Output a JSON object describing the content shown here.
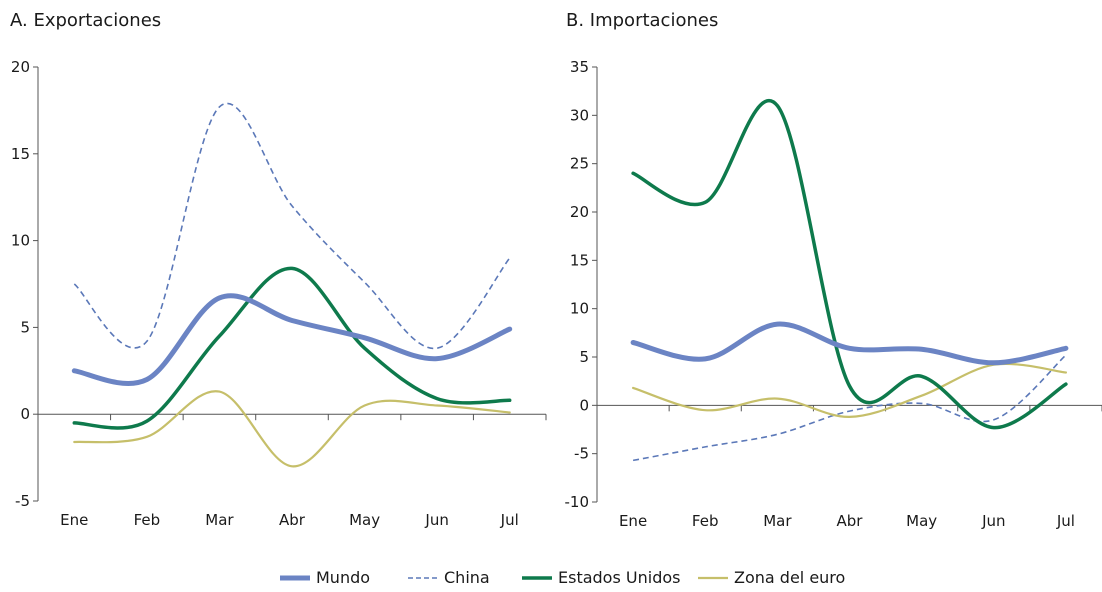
{
  "chart_data": [
    {
      "type": "line",
      "title": "A. Exportaciones",
      "xlabel": "",
      "ylabel": "",
      "categories": [
        "Ene",
        "Feb",
        "Mar",
        "Abr",
        "May",
        "Jun",
        "Jul"
      ],
      "ylim": [
        -5,
        20
      ],
      "yticks": [
        -5,
        0,
        5,
        10,
        15,
        20
      ],
      "series": [
        {
          "name": "Mundo",
          "values": [
            2.5,
            2.0,
            6.7,
            5.4,
            4.4,
            3.2,
            4.9
          ]
        },
        {
          "name": "China",
          "values": [
            7.5,
            4.2,
            17.7,
            12.0,
            7.6,
            3.8,
            9.0
          ]
        },
        {
          "name": "Estados Unidos",
          "values": [
            -0.5,
            -0.4,
            4.5,
            8.4,
            3.8,
            0.9,
            0.8
          ]
        },
        {
          "name": "Zona del euro",
          "values": [
            -1.6,
            -1.3,
            1.3,
            -3.0,
            0.5,
            0.5,
            0.1
          ]
        }
      ]
    },
    {
      "type": "line",
      "title": "B. Importaciones",
      "xlabel": "",
      "ylabel": "",
      "categories": [
        "Ene",
        "Feb",
        "Mar",
        "Abr",
        "May",
        "Jun",
        "Jul"
      ],
      "ylim": [
        -10,
        35
      ],
      "yticks": [
        -10,
        -5,
        0,
        5,
        10,
        15,
        20,
        25,
        30,
        35
      ],
      "series": [
        {
          "name": "Mundo",
          "values": [
            6.5,
            4.8,
            8.4,
            5.9,
            5.8,
            4.4,
            5.9
          ]
        },
        {
          "name": "China",
          "values": [
            -5.7,
            -4.3,
            -3.0,
            -0.6,
            0.2,
            -1.5,
            5.2
          ]
        },
        {
          "name": "Estados Unidos",
          "values": [
            24.0,
            21.0,
            31.0,
            2.0,
            3.0,
            -2.3,
            2.2
          ]
        },
        {
          "name": "Zona del euro",
          "values": [
            1.8,
            -0.5,
            0.7,
            -1.2,
            1.0,
            4.2,
            3.4
          ]
        }
      ]
    }
  ],
  "legend": [
    {
      "label": "Mundo",
      "color": "#6b84c4",
      "style": "solid",
      "width": 5
    },
    {
      "label": "China",
      "color": "#5b78b8",
      "style": "dashed",
      "width": 1.6
    },
    {
      "label": "Estados Unidos",
      "color": "#0e7a4c",
      "style": "solid",
      "width": 3.5
    },
    {
      "label": "Zona del euro",
      "color": "#c6bf6a",
      "style": "solid",
      "width": 2.2
    }
  ],
  "legend_position": "bottom-center",
  "grid": false
}
